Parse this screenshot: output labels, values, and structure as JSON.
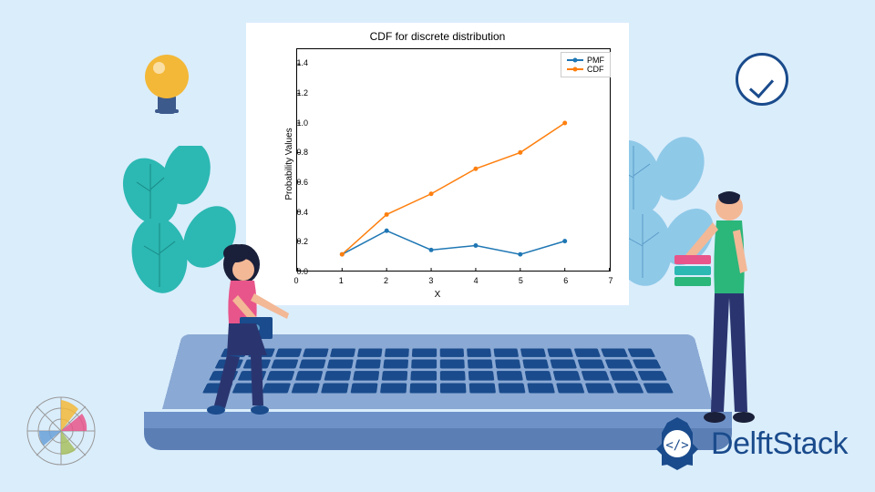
{
  "background_color": "#daedfb",
  "chart": {
    "type": "line",
    "title": "CDF for discrete distribution",
    "title_fontsize": 12,
    "xlabel": "X",
    "ylabel": "Probability Values",
    "label_fontsize": 10,
    "xlim": [
      0,
      7
    ],
    "ylim": [
      0,
      1.5
    ],
    "xtick_step": 1,
    "ytick_step": 0.2,
    "xticks": [
      0,
      1,
      2,
      3,
      4,
      5,
      6,
      7
    ],
    "yticks": [
      0.0,
      0.2,
      0.4,
      0.6,
      0.8,
      1.0,
      1.2,
      1.4
    ],
    "background_color": "#ffffff",
    "border_color": "#000000",
    "tick_fontsize": 9,
    "series": [
      {
        "label": "PMF",
        "color": "#1f77b4",
        "marker": "circle",
        "marker_size": 5,
        "line_width": 1.5,
        "x": [
          1,
          2,
          3,
          4,
          5,
          6
        ],
        "y": [
          0.11,
          0.27,
          0.14,
          0.17,
          0.11,
          0.2
        ]
      },
      {
        "label": "CDF",
        "color": "#ff7f0e",
        "marker": "circle",
        "marker_size": 5,
        "line_width": 1.5,
        "x": [
          1,
          2,
          3,
          4,
          5,
          6
        ],
        "y": [
          0.11,
          0.38,
          0.52,
          0.69,
          0.8,
          1.0
        ]
      }
    ],
    "legend": {
      "position": "upper-right",
      "border_color": "#cccccc",
      "fontsize": 9
    }
  },
  "decorations": {
    "lightbulb": {
      "bulb_color": "#f3b838",
      "base_color": "#3d5a8c"
    },
    "clock": {
      "border_color": "#1a4b8c",
      "check_color": "#1a4b8c",
      "face_color": "#ffffff"
    },
    "leaves": {
      "color_primary": "#2cb8b3",
      "color_accent": "#8fc9e8"
    },
    "laptop": {
      "deck_color": "#8aa9d4",
      "edge_color": "#5b7fb5",
      "key_color": "#1a4b8c"
    },
    "person_sitting": {
      "hair_color": "#1a1f3a",
      "skin_color": "#f3b896",
      "top_color": "#e8558a",
      "pants_color": "#2a3570",
      "shoe_color": "#1a4b8c",
      "laptop_color": "#1a4b8c"
    },
    "person_standing": {
      "hair_color": "#1a1f3a",
      "skin_color": "#f3b896",
      "top_color": "#2bb67a",
      "pants_color": "#2a3570",
      "shoe_color": "#1a1f3a",
      "books": [
        "#e8558a",
        "#2cb8b3",
        "#2bb67a"
      ]
    },
    "radar_chart": {
      "circle_color": "#999999",
      "wedge_colors": [
        "#f3b838",
        "#e8558a",
        "#a8c060",
        "#6aa0d8"
      ]
    }
  },
  "brand": {
    "name": "DelftStack",
    "logo_color": "#1a4b8c",
    "text_color": "#1a4b8c",
    "fontsize": 34
  }
}
